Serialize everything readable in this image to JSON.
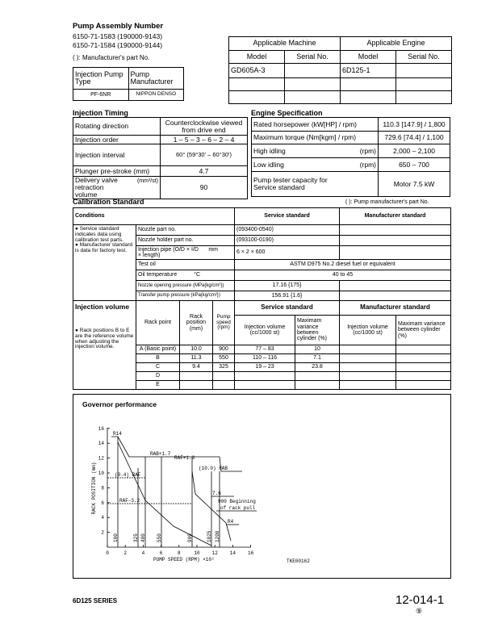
{
  "header": {
    "title": "Pump Assembly Number",
    "numbers": [
      "6150-71-1583 (190000-9143)",
      "6150-71-1584 (190000-9144)"
    ],
    "note": "( ): Manufacturer's part No."
  },
  "pump_type_table": {
    "headers": [
      "Injection Pump Type",
      "Pump Manufacturer"
    ],
    "row": [
      "PF-6NR",
      "NIPPON DENSO"
    ]
  },
  "applicable_table": {
    "headers": [
      "Applicable Machine",
      "Applicable Engine"
    ],
    "subheaders": [
      "Model",
      "Serial No.",
      "Model",
      "Serial No."
    ],
    "machine_model": "GD605A-3",
    "engine_model": "6D125-1"
  },
  "injection_timing": {
    "title": "Injection Timing",
    "rows": [
      [
        "Rotating direction",
        "Counterclockwise viewed from drive end"
      ],
      [
        "Injection order",
        "1 – 5 – 3 – 6 – 2 – 4"
      ],
      [
        "Injection interval",
        "60° (59°30' – 60°30')"
      ],
      [
        "Plunger pre-stroke (mm)",
        "4.7"
      ],
      [
        "Delivery valve retraction volume",
        "(mm³/st)",
        "90"
      ]
    ]
  },
  "engine_specification": {
    "title": "Engine Specification",
    "rows": [
      [
        "Rated horsepower (kW[HP] / rpm)",
        "110.3 [147.9] / 1,800"
      ],
      [
        "Maximum torque (Nm[kgm] / rpm)",
        "729.6 [74.4] / 1,100"
      ],
      [
        "High idling",
        "(rpm)",
        "2,000 – 2,100"
      ],
      [
        "Low idling",
        "(rpm)",
        "650 – 700"
      ],
      [
        "Pump tester capacity for Service standard",
        "Motor 7.5 kW"
      ]
    ]
  },
  "calibration": {
    "title": "Calibration Standard",
    "note": "( ): Pump manufacturer's part No.",
    "headers": [
      "Conditions",
      "Service standard",
      "Manufacturer standard"
    ],
    "notes": [
      "● Service standard indicates data using calibration test parts.",
      "● Manufacturer standard is data for factory test."
    ],
    "conditions": [
      [
        "Nozzle part no.",
        "(093400-0540)"
      ],
      [
        "Nozzle holder part no.",
        "(093100-0190)"
      ],
      [
        "Injection pipe (O/D × I/D × length)",
        "mm",
        "6 × 2 × 600"
      ],
      [
        "Test oil",
        "ASTM D975 No.2 diesel fuel or equivalent"
      ],
      [
        "Oil temperature",
        "°C",
        "40 to 45"
      ],
      [
        "Nozzle opening pressure (MPa{kg/cm²})",
        "17.16 {175}"
      ],
      [
        "Transfer pump pressure (kPa{kg/cm²})",
        "156.91 {1.6}"
      ]
    ]
  },
  "injection_volume": {
    "title": "Injection volume",
    "note": "● Rack positions B to E are the reference volume when adjusting the injection volume.",
    "headers": [
      "Rack point",
      "Rack position (mm)",
      "Pump speed (rpm)",
      "Service standard",
      "Manufacturer standard"
    ],
    "subheaders": [
      "Injection volume (cc/1000 st)",
      "Maximam variance between cylinder (%)",
      "Injection volume (cc/1000 st)",
      "Maximam variance between cylinder (%)"
    ],
    "rows": [
      [
        "A (Basic point)",
        "10.0",
        "900",
        "77 – 83",
        "10"
      ],
      [
        "B",
        "11.3",
        "550",
        "110 – 116",
        "7.1"
      ],
      [
        "C",
        "9.4",
        "325",
        "19 – 23",
        "23.8"
      ],
      [
        "D"
      ],
      [
        "E"
      ]
    ]
  },
  "governor": {
    "title": "Governor performance",
    "y_label": "RACK POSITION (mm)",
    "x_label": "PUMP SPEED (RPM)  ×10²",
    "yticks": [
      2,
      4,
      6,
      8,
      10,
      12,
      14,
      16
    ],
    "xticks": [
      0,
      2,
      4,
      6,
      8,
      10,
      12,
      14,
      16
    ],
    "speed_labels": [
      "100",
      "325",
      "400",
      "550",
      "900",
      "1025",
      "1200"
    ],
    "annotations": [
      "R14",
      "RAB+1.7",
      "RAF+1.3",
      "(10.0) RAB",
      "(9.4) RAF",
      "RAF−3.2",
      "7.6",
      "900 Beginning",
      "of rack pull",
      "R4"
    ],
    "code": "TKE00162"
  },
  "footer": {
    "series": "6D125 SERIES",
    "page": "12-014-1",
    "mark": "⑨"
  }
}
